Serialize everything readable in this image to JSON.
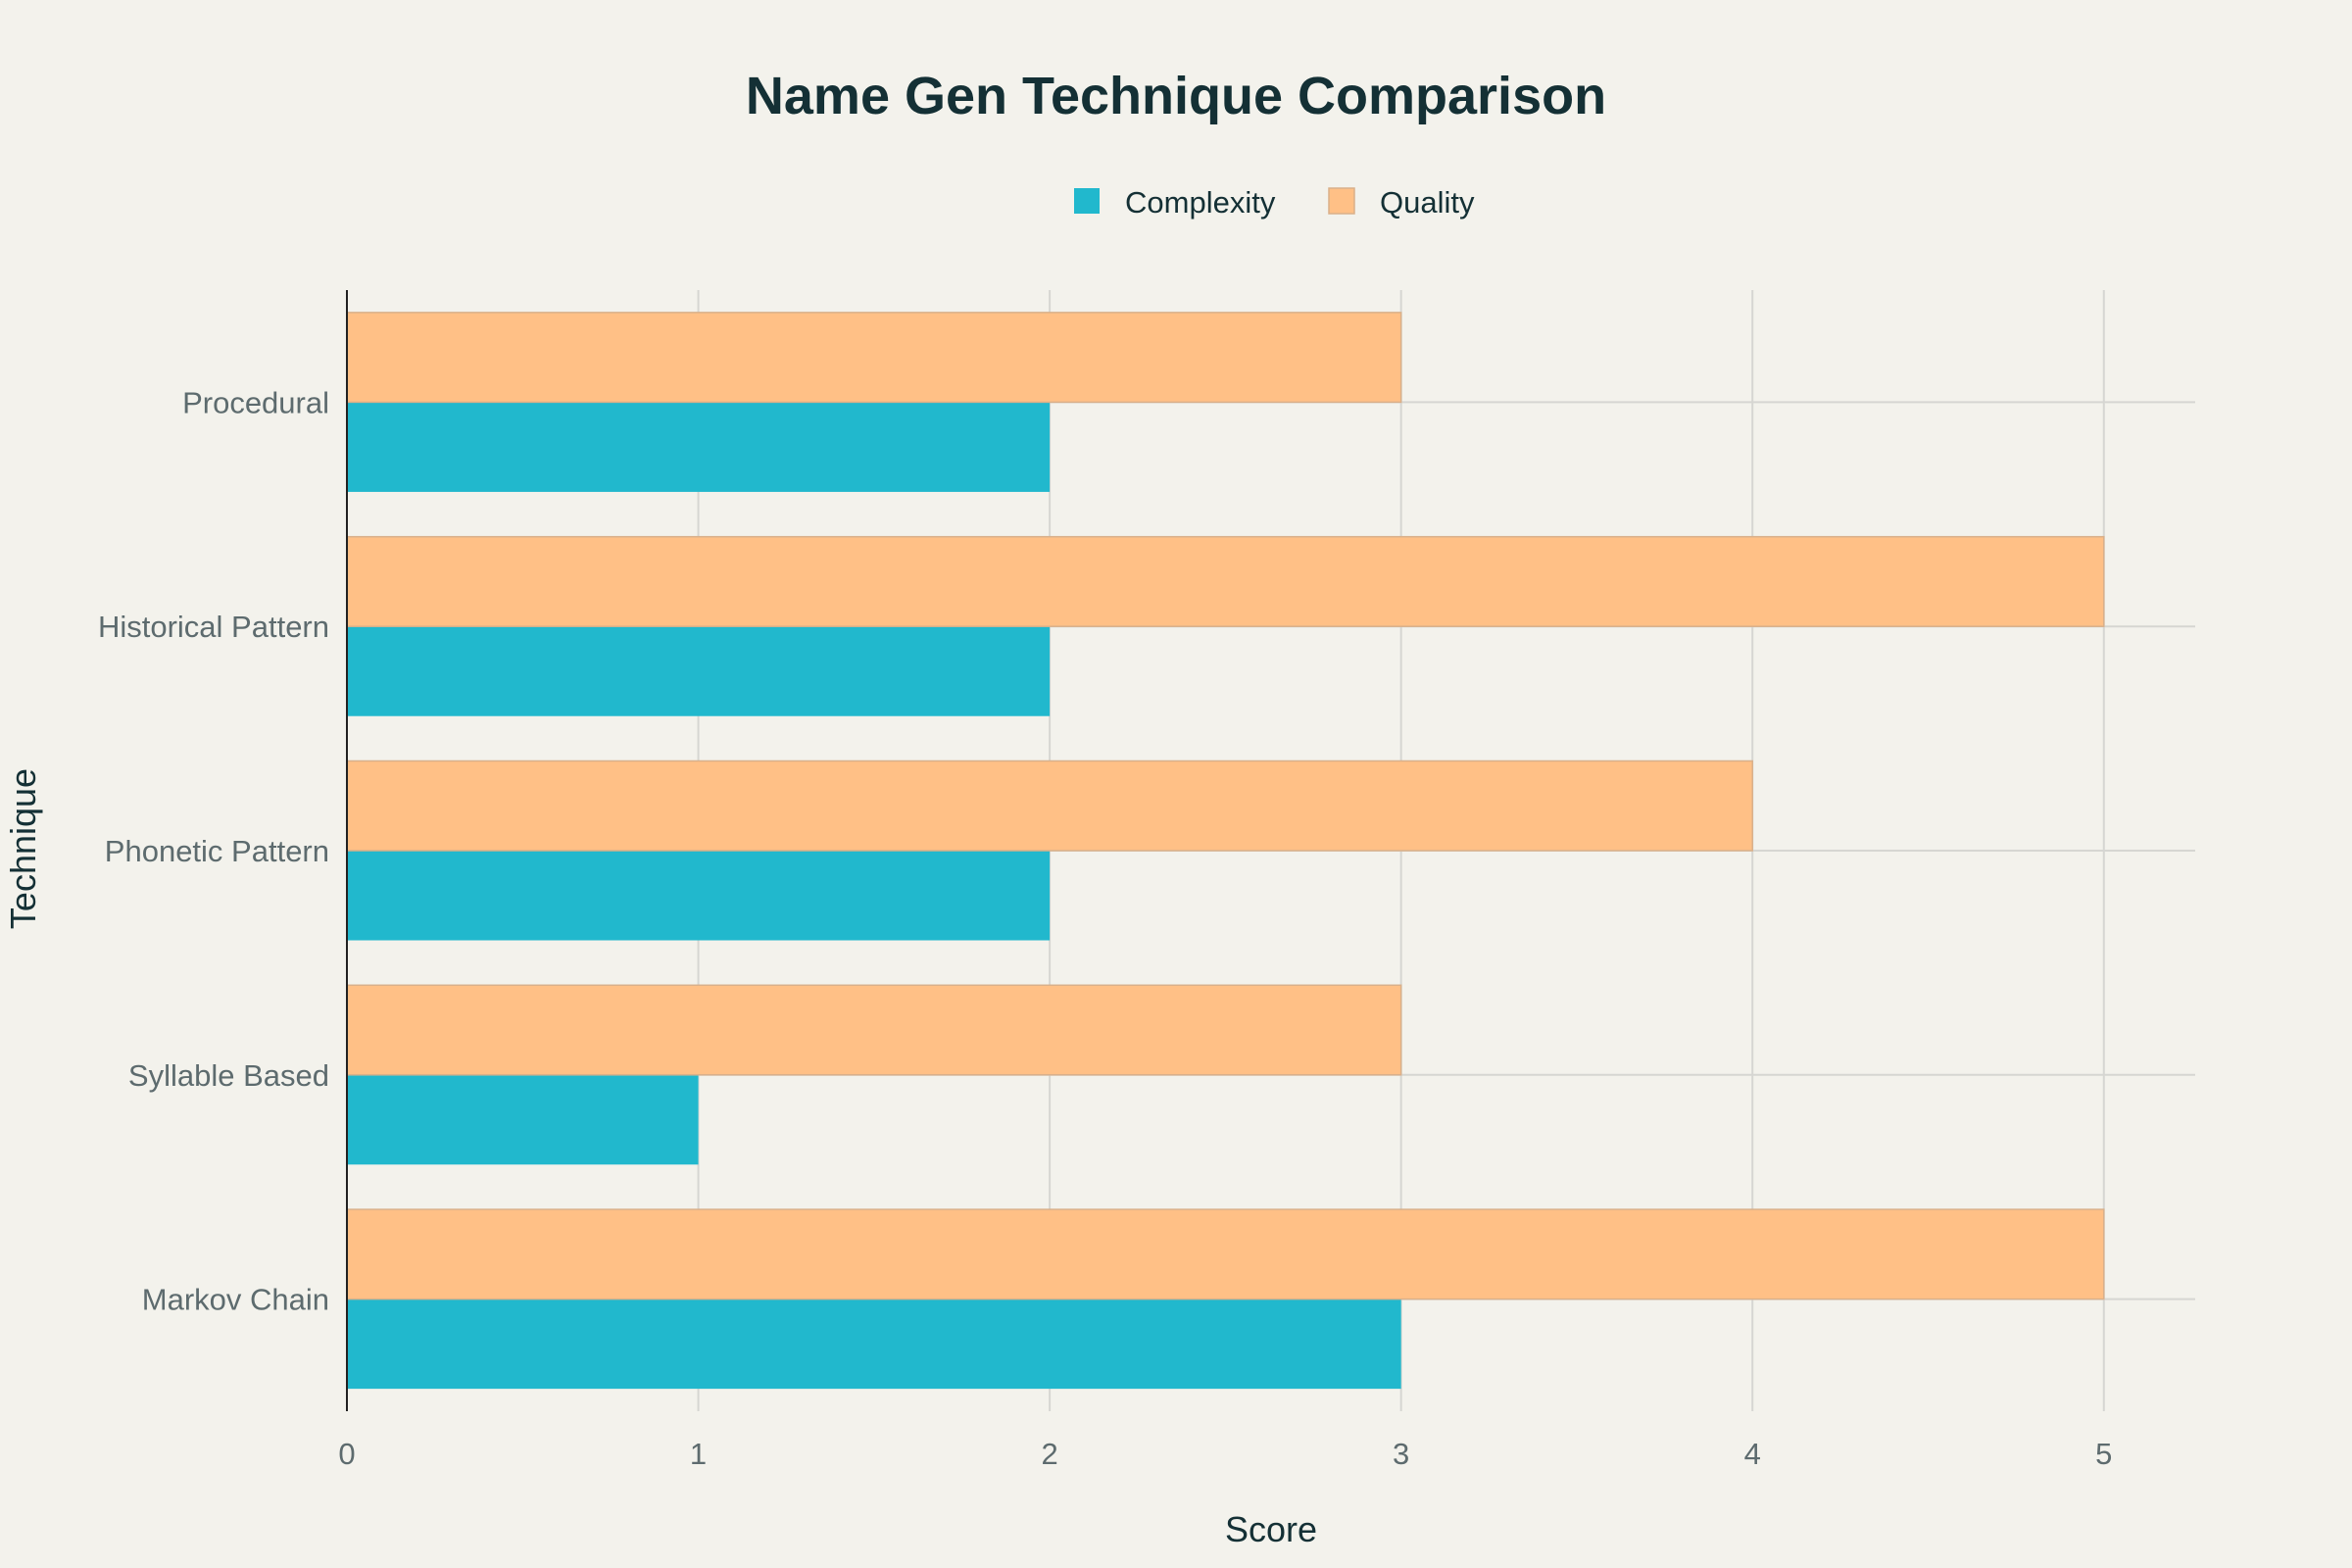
{
  "chart_data": {
    "type": "bar",
    "orientation": "horizontal",
    "title": "Name Gen Technique Comparison",
    "xlabel": "Score",
    "ylabel": "Technique",
    "categories": [
      "Markov Chain",
      "Syllable Based",
      "Phonetic Pattern",
      "Historical Pattern",
      "Procedural"
    ],
    "series": [
      {
        "name": "Complexity",
        "values": [
          3,
          1,
          2,
          2,
          2
        ],
        "color": "#21b8cd"
      },
      {
        "name": "Quality",
        "values": [
          5,
          3,
          4,
          5,
          3
        ],
        "color": "#ffc086"
      }
    ],
    "xlim": [
      0,
      5.26
    ],
    "xticks": [
      0,
      1,
      2,
      3,
      4,
      5
    ],
    "grid": true,
    "legend_position": "top-center"
  },
  "style": {
    "background": "#f3f2ec",
    "grid_color": "#d6d6d2",
    "axis_color": "#222222"
  }
}
